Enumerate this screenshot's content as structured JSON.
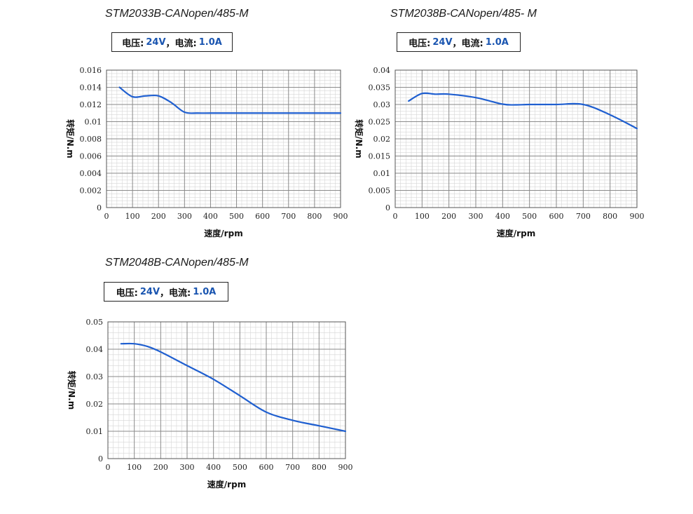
{
  "colors": {
    "curve": "#1f5fd0",
    "value_text": "#1a55b0",
    "grid_major": "#8a8a8a",
    "grid_minor": "#d6d6d6"
  },
  "chart_data": [
    {
      "type": "line",
      "title": "STM2033B-CANopen/485-M",
      "spec": {
        "voltage_label": "电压:",
        "voltage_value": "24V",
        "sep": "，",
        "current_label": "电流:",
        "current_value": "1.0A"
      },
      "xlabel": "速度/rpm",
      "ylabel": "转矩/N.m",
      "xlim": [
        0,
        900
      ],
      "ylim": [
        0,
        0.016
      ],
      "xticks": [
        0,
        100,
        200,
        300,
        400,
        500,
        600,
        700,
        800,
        900
      ],
      "xtick_labels": [
        "0",
        "100",
        "200",
        "300",
        "400",
        "500",
        "600",
        "700",
        "800",
        "900"
      ],
      "yticks": [
        0,
        0.002,
        0.004,
        0.006,
        0.008,
        0.01,
        0.012,
        0.014,
        0.016
      ],
      "ytick_labels": [
        "0",
        "0.002",
        "0.004",
        "0.006",
        "0.008",
        "0.01",
        "0.012",
        "0.014",
        "0.016"
      ],
      "grid": true,
      "series": [
        {
          "x": [
            50,
            100,
            150,
            200,
            250,
            300,
            350,
            400,
            500,
            600,
            700,
            800,
            900
          ],
          "values": [
            0.014,
            0.0129,
            0.013,
            0.013,
            0.0122,
            0.0111,
            0.011,
            0.011,
            0.011,
            0.011,
            0.011,
            0.011,
            0.011
          ]
        }
      ]
    },
    {
      "type": "line",
      "title": "STM2038B-CANopen/485- M",
      "spec": {
        "voltage_label": "电压:",
        "voltage_value": "24V",
        "sep": "，",
        "current_label": "电流:",
        "current_value": "1.0A"
      },
      "xlabel": "速度/rpm",
      "ylabel": "转矩/N.m",
      "xlim": [
        0,
        900
      ],
      "ylim": [
        0,
        0.04
      ],
      "xticks": [
        0,
        100,
        200,
        300,
        400,
        500,
        600,
        700,
        800,
        900
      ],
      "xtick_labels": [
        "0",
        "100",
        "200",
        "300",
        "400",
        "500",
        "600",
        "700",
        "800",
        "900"
      ],
      "yticks": [
        0,
        0.005,
        0.01,
        0.015,
        0.02,
        0.025,
        0.03,
        0.035,
        0.04
      ],
      "ytick_labels": [
        "0",
        "0.005",
        "0.01",
        "0.015",
        "0.02",
        "0.025",
        "0.03",
        "0.035",
        "0.04"
      ],
      "grid": true,
      "series": [
        {
          "x": [
            50,
            100,
            150,
            200,
            300,
            400,
            450,
            500,
            600,
            700,
            800,
            900
          ],
          "values": [
            0.031,
            0.0332,
            0.033,
            0.033,
            0.032,
            0.0301,
            0.0299,
            0.03,
            0.03,
            0.03,
            0.027,
            0.023
          ]
        }
      ]
    },
    {
      "type": "line",
      "title": "STM2048B-CANopen/485-M",
      "spec": {
        "voltage_label": "电压:",
        "voltage_value": "24V",
        "sep": "，",
        "current_label": "电流:",
        "current_value": "1.0A"
      },
      "xlabel": "速度/rpm",
      "ylabel": "转矩/N.m",
      "xlim": [
        0,
        900
      ],
      "ylim": [
        0,
        0.05
      ],
      "xticks": [
        0,
        100,
        200,
        300,
        400,
        500,
        600,
        700,
        800,
        900
      ],
      "xtick_labels": [
        "0",
        "100",
        "200",
        "300",
        "400",
        "500",
        "600",
        "700",
        "800",
        "900"
      ],
      "yticks": [
        0,
        0.01,
        0.02,
        0.03,
        0.04,
        0.05
      ],
      "ytick_labels": [
        "0",
        "0.01",
        "0.02",
        "0.03",
        "0.04",
        "0.05"
      ],
      "grid": true,
      "series": [
        {
          "x": [
            50,
            100,
            150,
            200,
            300,
            400,
            500,
            600,
            700,
            800,
            900
          ],
          "values": [
            0.042,
            0.042,
            0.041,
            0.039,
            0.034,
            0.029,
            0.023,
            0.017,
            0.014,
            0.012,
            0.01
          ]
        }
      ]
    }
  ]
}
